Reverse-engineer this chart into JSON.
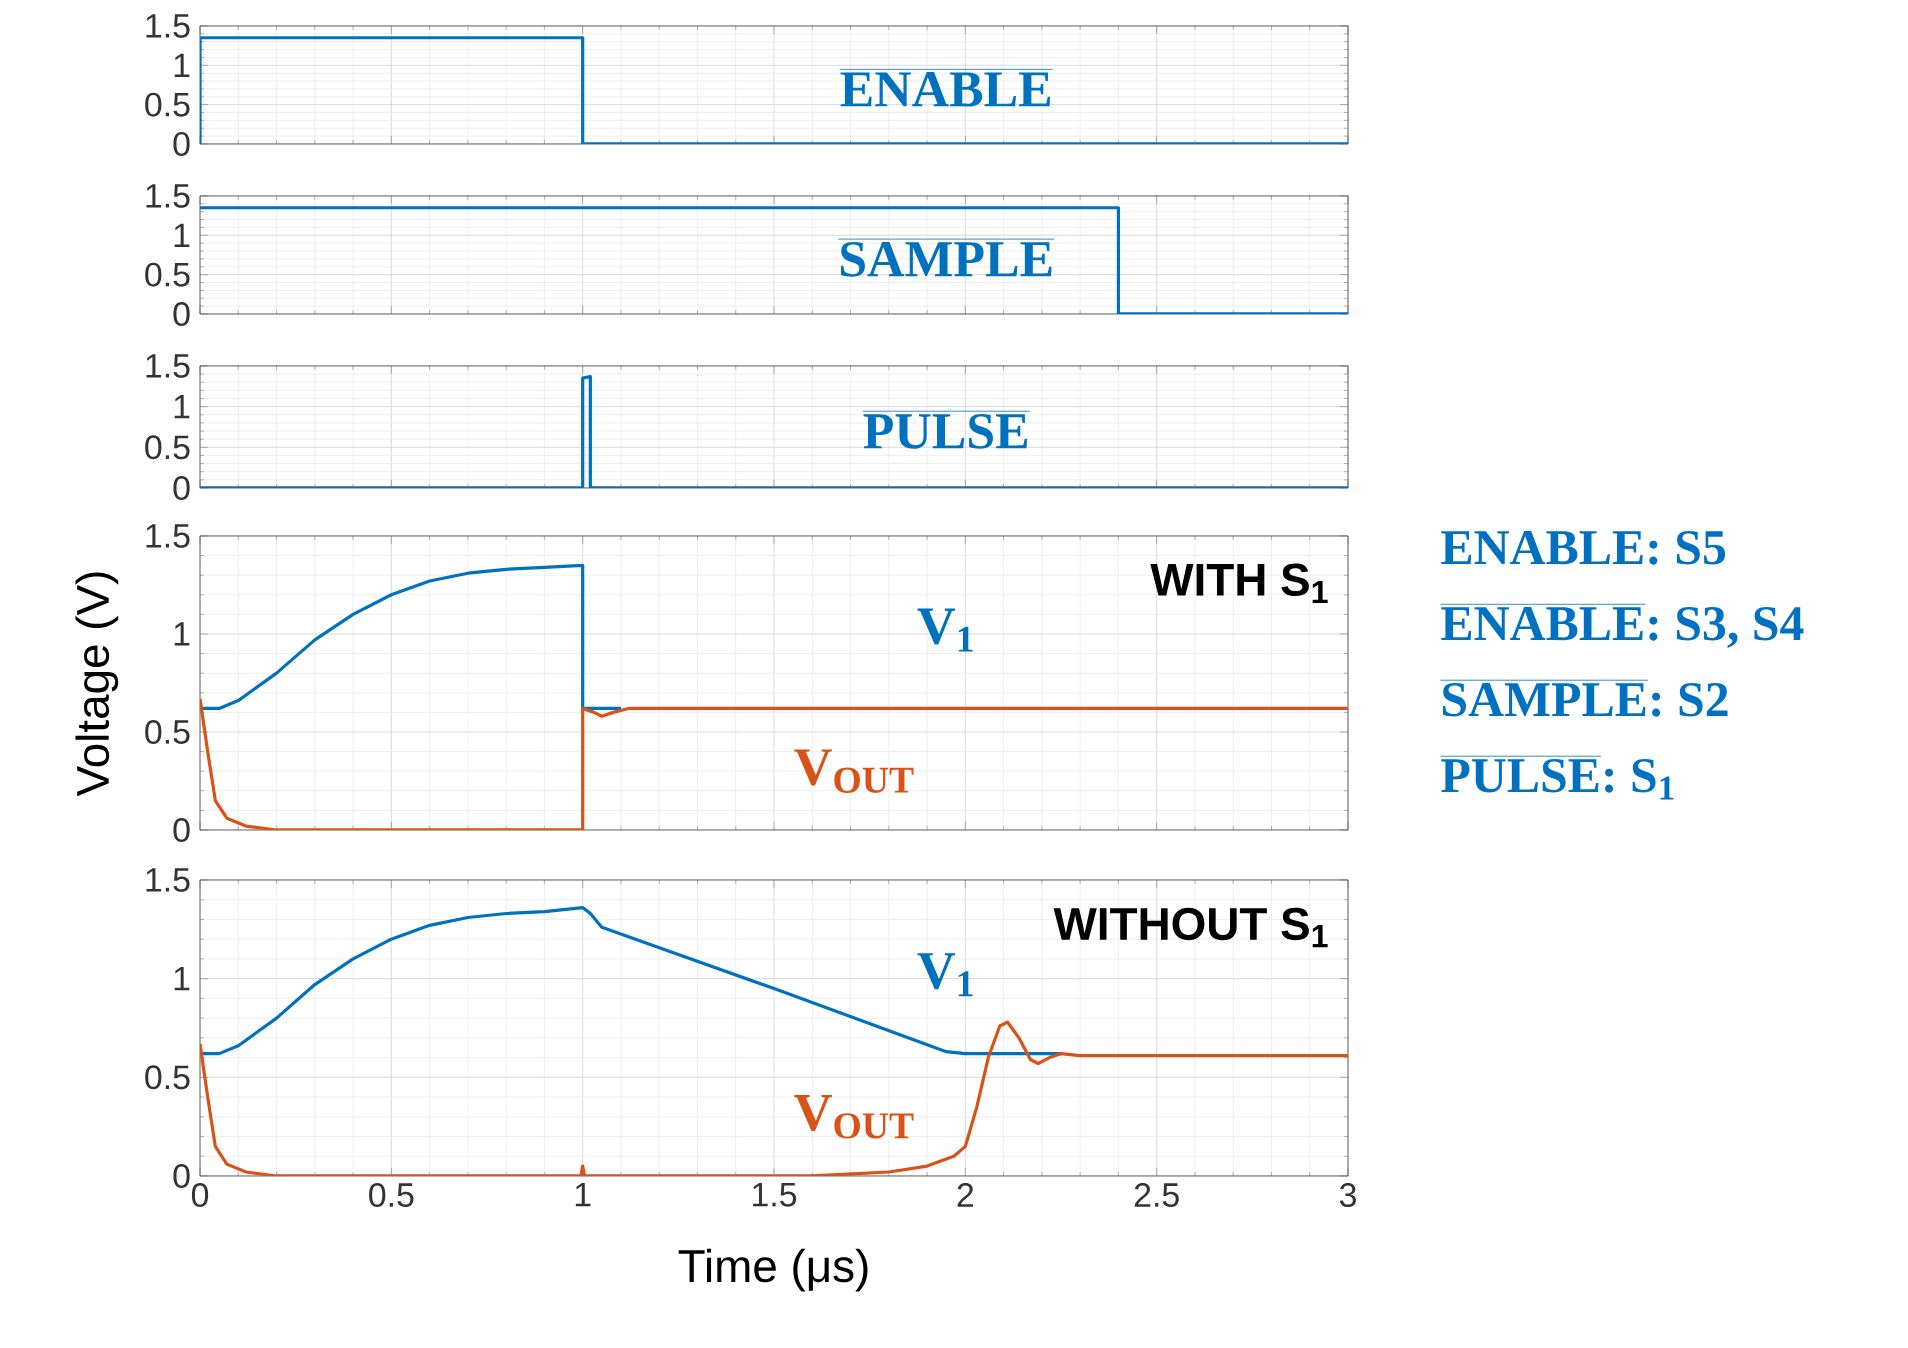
{
  "chart_data": [
    {
      "type": "line",
      "annotations": [
        "ENABLE"
      ],
      "xlim": [
        0,
        3
      ],
      "ylim": [
        0,
        1.5
      ],
      "xticks": [
        0,
        0.5,
        1,
        1.5,
        2,
        2.5,
        3
      ],
      "yticks": [
        0,
        0.5,
        1,
        1.5
      ],
      "grid": true,
      "tick_labels": "y",
      "line_style": "solid",
      "series": [
        {
          "color": "#0072bd",
          "x": [
            0,
            0,
            1,
            1,
            3
          ],
          "values": [
            0,
            1.35,
            1.35,
            0,
            0
          ]
        }
      ]
    },
    {
      "type": "line",
      "annotations": [
        "SAMPLE"
      ],
      "xlim": [
        0,
        3
      ],
      "ylim": [
        0,
        1.5
      ],
      "xticks": [
        0,
        0.5,
        1,
        1.5,
        2,
        2.5,
        3
      ],
      "yticks": [
        0,
        0.5,
        1,
        1.5
      ],
      "grid": true,
      "tick_labels": "y",
      "line_style": "solid",
      "series": [
        {
          "color": "#0072bd",
          "x": [
            0,
            2.4,
            2.4,
            3
          ],
          "values": [
            1.35,
            1.35,
            0,
            0
          ]
        }
      ]
    },
    {
      "type": "line",
      "annotations": [
        "PULSE"
      ],
      "xlim": [
        0,
        3
      ],
      "ylim": [
        0,
        1.5
      ],
      "xticks": [
        0,
        0.5,
        1,
        1.5,
        2,
        2.5,
        3
      ],
      "yticks": [
        0,
        0.5,
        1,
        1.5
      ],
      "grid": true,
      "tick_labels": "y",
      "line_style": "solid",
      "series": [
        {
          "color": "#0072bd",
          "x": [
            0,
            1,
            1,
            1.02,
            1.02,
            3
          ],
          "values": [
            0,
            0,
            1.35,
            1.37,
            0,
            0
          ]
        }
      ]
    },
    {
      "type": "line",
      "annotations": [
        "WITH S$_{1}$"
      ],
      "ylabel": "Voltage (V)",
      "xlim": [
        0,
        3
      ],
      "ylim": [
        0,
        1.5
      ],
      "xticks": [
        0,
        0.5,
        1,
        1.5,
        2,
        2.5,
        3
      ],
      "yticks": [
        0,
        0.5,
        1,
        1.5
      ],
      "grid": true,
      "tick_labels": "y",
      "line_style": "solid",
      "series": [
        {
          "name": "V$_{1}$",
          "color": "#0072bd",
          "x": [
            0,
            0.05,
            0.1,
            0.2,
            0.3,
            0.4,
            0.5,
            0.6,
            0.7,
            0.8,
            0.9,
            1.0,
            1.0,
            1.05,
            1.1
          ],
          "values": [
            0.62,
            0.62,
            0.66,
            0.8,
            0.97,
            1.1,
            1.2,
            1.27,
            1.31,
            1.33,
            1.34,
            1.35,
            0.62,
            0.62,
            0.62
          ]
        },
        {
          "name": "V$_{OUT}$",
          "color": "#d95319",
          "x": [
            0,
            0.02,
            0.04,
            0.07,
            0.12,
            0.2,
            1.0,
            1.0,
            1.03,
            1.05,
            1.08,
            1.12,
            3
          ],
          "values": [
            0.67,
            0.4,
            0.15,
            0.06,
            0.02,
            0,
            0,
            0.62,
            0.6,
            0.58,
            0.6,
            0.62,
            0.62
          ]
        }
      ]
    },
    {
      "type": "line",
      "annotations": [
        "WITHOUT S$_{1}$"
      ],
      "xlabel": "Time (μs)",
      "xlim": [
        0,
        3
      ],
      "ylim": [
        0,
        1.5
      ],
      "xticks": [
        0,
        0.5,
        1,
        1.5,
        2,
        2.5,
        3
      ],
      "yticks": [
        0,
        0.5,
        1,
        1.5
      ],
      "grid": true,
      "line_style": "solid",
      "series": [
        {
          "name": "V$_{1}$",
          "color": "#0072bd",
          "x": [
            0,
            0.05,
            0.1,
            0.2,
            0.3,
            0.4,
            0.5,
            0.6,
            0.7,
            0.8,
            0.9,
            1.0,
            1.02,
            1.05,
            1.5,
            1.95,
            2.0,
            2.1,
            2.25
          ],
          "values": [
            0.62,
            0.62,
            0.66,
            0.8,
            0.97,
            1.1,
            1.2,
            1.27,
            1.31,
            1.33,
            1.34,
            1.36,
            1.33,
            1.26,
            0.95,
            0.63,
            0.62,
            0.62,
            0.62
          ]
        },
        {
          "name": "V$_{OUT}$",
          "color": "#d95319",
          "x": [
            0,
            0.02,
            0.04,
            0.07,
            0.12,
            0.2,
            0.995,
            1.0,
            1.005,
            1.6,
            1.8,
            1.9,
            1.97,
            2.0,
            2.03,
            2.06,
            2.09,
            2.11,
            2.14,
            2.17,
            2.19,
            2.22,
            2.25,
            2.3,
            3
          ],
          "values": [
            0.67,
            0.4,
            0.15,
            0.06,
            0.02,
            0,
            0,
            0.05,
            0,
            0,
            0.02,
            0.05,
            0.1,
            0.15,
            0.35,
            0.6,
            0.76,
            0.78,
            0.7,
            0.59,
            0.57,
            0.6,
            0.62,
            0.61,
            0.61
          ]
        }
      ]
    },
    {
      "type": "other",
      "annotations": [
        "ENABLE: S5",
        "ENABLE: S3, S4",
        "SAMPLE: S2",
        "PULSE: S$_{1}$"
      ]
    }
  ]
}
